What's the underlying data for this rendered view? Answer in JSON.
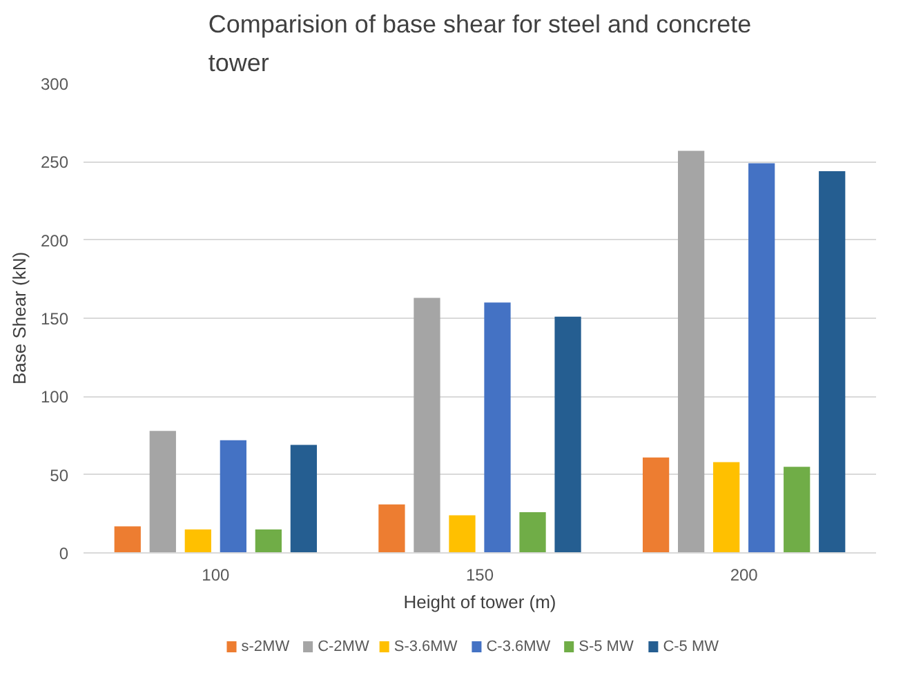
{
  "chart_data": {
    "type": "bar",
    "title": "Comparision of base shear for steel and concrete\ntower",
    "xlabel": "Height of tower (m)",
    "ylabel": "Base Shear (kN)",
    "categories": [
      "100",
      "150",
      "200"
    ],
    "series": [
      {
        "name": "s-2MW",
        "color": "#ed7d31",
        "values": [
          17,
          31,
          61
        ]
      },
      {
        "name": "C-2MW",
        "color": "#a5a5a5",
        "values": [
          78,
          163,
          257
        ]
      },
      {
        "name": "S-3.6MW",
        "color": "#ffc000",
        "values": [
          15,
          24,
          58
        ]
      },
      {
        "name": "C-3.6MW",
        "color": "#4472c4",
        "values": [
          72,
          160,
          249
        ]
      },
      {
        "name": "S-5 MW",
        "color": "#70ad47",
        "values": [
          15,
          26,
          55
        ]
      },
      {
        "name": "C-5 MW",
        "color": "#255e91",
        "values": [
          69,
          151,
          244
        ]
      }
    ],
    "ylim": [
      0,
      300
    ],
    "yticks": [
      0,
      50,
      100,
      150,
      200,
      250,
      300
    ],
    "grid": "y",
    "legend": "bottom"
  }
}
